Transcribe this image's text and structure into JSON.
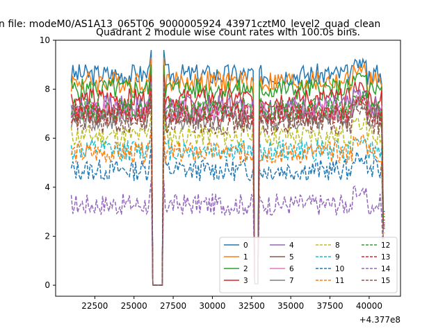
{
  "figure": {
    "suptitle": "n file: modeM0/AS1A13_065T06_9000005924_43971cztM0_level2_quad_clean",
    "title": "Quadrant 2 module wise count rates with 100.0s bins.",
    "offset_text": "+4.377e8"
  },
  "chart_data": {
    "type": "line",
    "title": "Quadrant 2 module wise count rates with 100.0s bins.",
    "xlabel": "",
    "ylabel": "",
    "x_offset": 437700000,
    "xlim": [
      20000,
      42000
    ],
    "ylim": [
      -0.45,
      10.0
    ],
    "xticks": [
      22500,
      25000,
      27500,
      30000,
      32500,
      35000,
      37500,
      40000
    ],
    "xtick_labels": [
      "22500",
      "25000",
      "27500",
      "30000",
      "32500",
      "35000",
      "37500",
      "40000"
    ],
    "yticks": [
      0,
      2,
      4,
      6,
      8,
      10
    ],
    "ytick_labels": [
      "0",
      "2",
      "4",
      "6",
      "8",
      "10"
    ],
    "legend_position": "lower-right",
    "legend_columns": 4,
    "grid": false,
    "gaps": [
      {
        "x_start": 26100,
        "x_end": 26950
      },
      {
        "x_start": 32650,
        "x_end": 32950
      }
    ],
    "series": [
      {
        "name": "0",
        "color": "#1f77b4",
        "dash": "solid",
        "level": 8.6
      },
      {
        "name": "1",
        "color": "#ff7f0e",
        "dash": "solid",
        "level": 8.3
      },
      {
        "name": "2",
        "color": "#2ca02c",
        "dash": "solid",
        "level": 8.0
      },
      {
        "name": "3",
        "color": "#d62728",
        "dash": "solid",
        "level": 7.6
      },
      {
        "name": "4",
        "color": "#9467bd",
        "dash": "solid",
        "level": 7.3
      },
      {
        "name": "5",
        "color": "#8c564b",
        "dash": "solid",
        "level": 7.0
      },
      {
        "name": "6",
        "color": "#e377c2",
        "dash": "solid",
        "level": 7.1
      },
      {
        "name": "7",
        "color": "#7f7f7f",
        "dash": "solid",
        "level": 6.8
      },
      {
        "name": "8",
        "color": "#bcbd22",
        "dash": "dashed",
        "level": 6.1
      },
      {
        "name": "9",
        "color": "#17becf",
        "dash": "dashed",
        "level": 5.5
      },
      {
        "name": "10",
        "color": "#1f77b4",
        "dash": "dashed",
        "level": 4.7
      },
      {
        "name": "11",
        "color": "#ff7f0e",
        "dash": "dashed",
        "level": 5.4
      },
      {
        "name": "12",
        "color": "#2ca02c",
        "dash": "dashed",
        "level": 7.2
      },
      {
        "name": "13",
        "color": "#d62728",
        "dash": "dashed",
        "level": 7.0
      },
      {
        "name": "14",
        "color": "#9467bd",
        "dash": "dashed",
        "level": 3.3
      },
      {
        "name": "15",
        "color": "#8c564b",
        "dash": "dashed",
        "level": 6.6
      }
    ]
  }
}
